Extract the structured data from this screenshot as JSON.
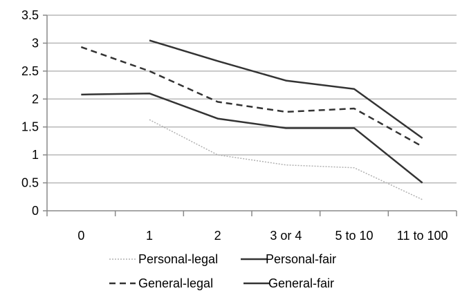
{
  "chart_data": {
    "type": "line",
    "categories": [
      "0",
      "1",
      "2",
      "3 or 4",
      "5 to 10",
      "11 to 100"
    ],
    "ylim": [
      0,
      3.5
    ],
    "yticks": [
      "0",
      "0.5",
      "1",
      "1.5",
      "2",
      "2.5",
      "3",
      "3.5"
    ],
    "grid": true,
    "legend_position": "bottom",
    "series": [
      {
        "name": "Personal-legal",
        "style": "dotted",
        "color": "#b0b0b0",
        "values": [
          null,
          1.63,
          1.0,
          0.82,
          0.77,
          0.2
        ]
      },
      {
        "name": "Personal-fair",
        "style": "solid",
        "color": "#333333",
        "values": [
          2.08,
          2.1,
          1.65,
          1.48,
          1.48,
          0.5
        ]
      },
      {
        "name": "General-legal",
        "style": "dashed",
        "color": "#333333",
        "values": [
          2.93,
          2.5,
          1.95,
          1.77,
          1.83,
          1.15
        ]
      },
      {
        "name": "General-fair",
        "style": "solid",
        "color": "#333333",
        "values": [
          null,
          3.05,
          2.68,
          2.33,
          2.18,
          1.3
        ]
      }
    ]
  }
}
